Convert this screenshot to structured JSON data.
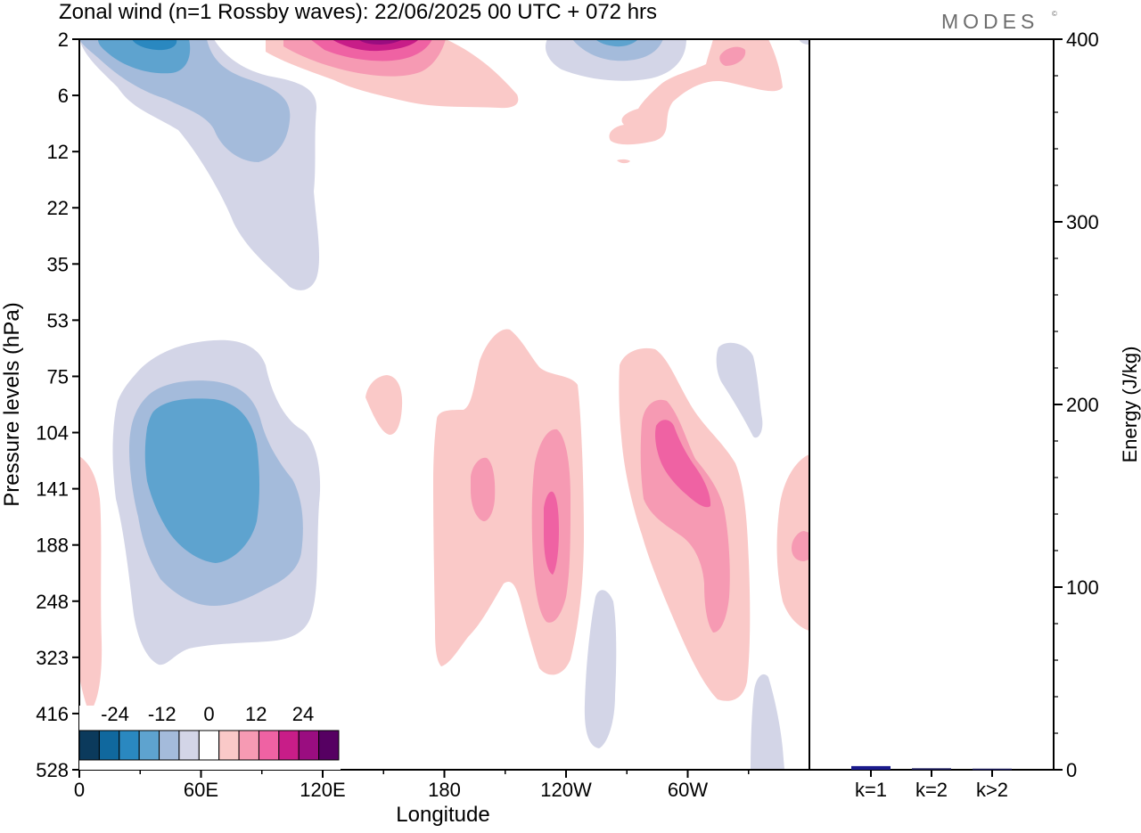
{
  "title": "Zonal wind (n=1 Rossby waves):  22/06/2025  00 UTC  + 072 hrs",
  "brand": "MODES",
  "brand_mark": "©",
  "chart_data": [
    {
      "type": "heatmap",
      "title": "Zonal wind (n=1 Rossby waves):  22/06/2025  00 UTC  + 072 hrs",
      "xlabel": "Longitude",
      "ylabel": "Pressure levels (hPa)",
      "x_ticks": [
        "0",
        "60E",
        "120E",
        "180",
        "120W",
        "60W"
      ],
      "x_tick_degrees": [
        0,
        60,
        120,
        180,
        240,
        300
      ],
      "xlim": [
        0,
        360
      ],
      "y_ticks": [
        "2",
        "6",
        "12",
        "22",
        "35",
        "53",
        "75",
        "104",
        "141",
        "188",
        "248",
        "323",
        "416",
        "528"
      ],
      "y_reversed": true,
      "colorbar": {
        "tick_labels": [
          "-24",
          "-12",
          "0",
          "12",
          "24"
        ],
        "levels": [
          -28,
          -24,
          -20,
          -16,
          -12,
          -8,
          -4,
          4,
          8,
          12,
          16,
          20,
          24,
          28
        ],
        "colors": [
          "#0b3a5c",
          "#10689e",
          "#2a88c0",
          "#5ea3cf",
          "#a4bbdb",
          "#d3d5e7",
          "#ffffff",
          "#fac9c8",
          "#f69ab3",
          "#ef62a3",
          "#c81d88",
          "#9a0d80",
          "#560062"
        ]
      },
      "features": [
        {
          "sign": "negative",
          "peak": -20,
          "lon": 40,
          "level_hpa": 2
        },
        {
          "sign": "negative",
          "peak": -12,
          "lon": 70,
          "level_hpa": 10
        },
        {
          "sign": "negative",
          "peak": -16,
          "lon": 280,
          "level_hpa": 2
        },
        {
          "sign": "positive",
          "peak": 24,
          "lon": 150,
          "level_hpa": 2
        },
        {
          "sign": "positive",
          "peak": 12,
          "lon": 325,
          "level_hpa": 4
        },
        {
          "sign": "negative",
          "peak": -16,
          "lon": 55,
          "level_hpa": 141
        },
        {
          "sign": "positive",
          "peak": 12,
          "lon": 200,
          "level_hpa": 141
        },
        {
          "sign": "positive",
          "peak": 16,
          "lon": 234,
          "level_hpa": 188
        },
        {
          "sign": "positive",
          "peak": 12,
          "lon": 298,
          "level_hpa": 160
        },
        {
          "sign": "positive",
          "peak": 4,
          "lon": 150,
          "level_hpa": 90
        },
        {
          "sign": "positive",
          "peak": 8,
          "lon": 357,
          "level_hpa": 188
        },
        {
          "sign": "negative",
          "peak": -4,
          "lon": 328,
          "level_hpa": 85
        },
        {
          "sign": "negative",
          "peak": -4,
          "lon": 258,
          "level_hpa": 330
        },
        {
          "sign": "negative",
          "peak": -4,
          "lon": 335,
          "level_hpa": 450
        }
      ]
    },
    {
      "type": "bar",
      "ylabel": "Energy (J/kg)",
      "ylim": [
        0,
        400
      ],
      "y_ticks": [
        0,
        100,
        200,
        300,
        400
      ],
      "categories": [
        "k=1",
        "k=2",
        "k>2"
      ],
      "values": [
        2,
        0.8,
        0.6
      ],
      "colors": [
        "#1a1a8c",
        "#1a1a5c",
        "#1a1a5c"
      ]
    }
  ]
}
